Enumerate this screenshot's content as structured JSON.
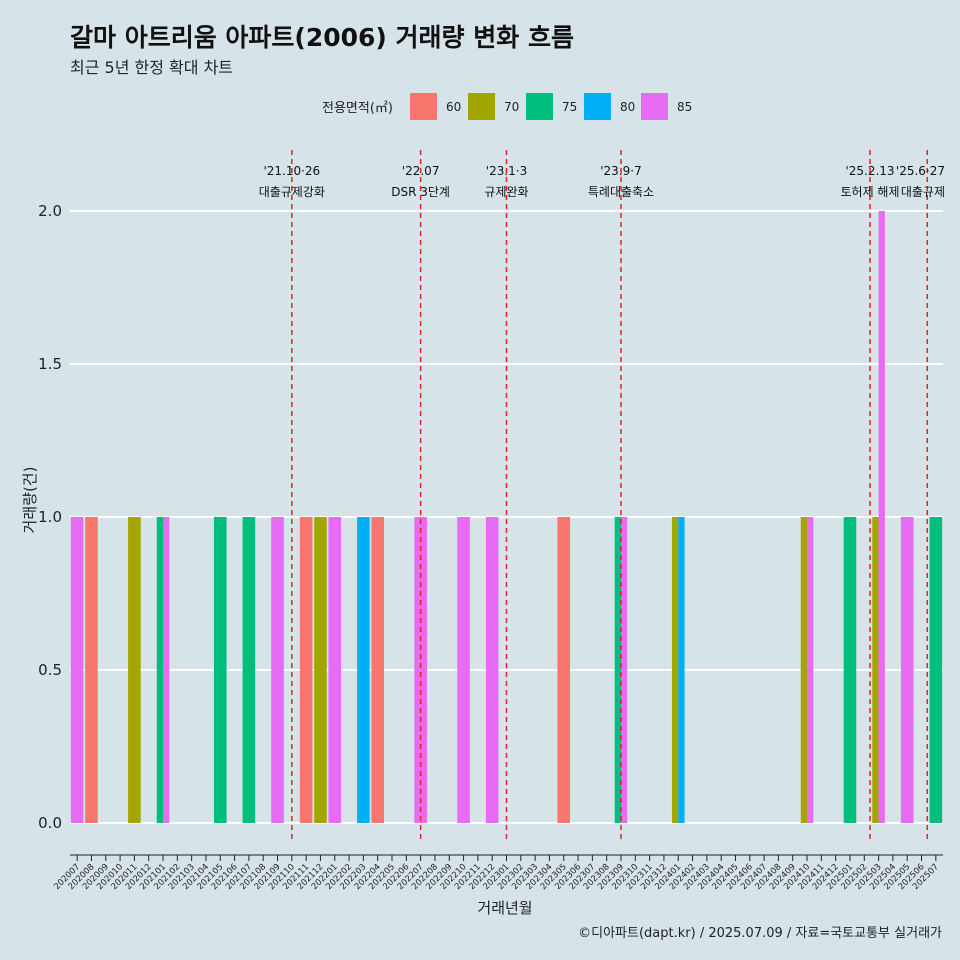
{
  "chart_data": {
    "type": "bar",
    "title": "갈마 아트리움 아파트(2006) 거래량 변화 흐름",
    "subtitle": "최근 5년 한정 확대 차트",
    "xlabel": "거래년월",
    "ylabel": "거래량(건)",
    "caption": "©디아파트(dapt.kr) / 2025.07.09 / 자료=국토교통부 실거래가",
    "legend_title": "전용면적(㎡)",
    "legend_position": "top",
    "ylim": [
      0,
      2.15
    ],
    "yticks": [
      0.0,
      0.5,
      1.0,
      1.5,
      2.0
    ],
    "ytick_labels": [
      "0.0",
      "0.5",
      "1.0",
      "1.5",
      "2.0"
    ],
    "grid": true,
    "categories": [
      "202007",
      "202008",
      "202009",
      "202010",
      "202011",
      "202012",
      "202101",
      "202102",
      "202103",
      "202104",
      "202105",
      "202106",
      "202107",
      "202108",
      "202109",
      "202110",
      "202111",
      "202112",
      "202201",
      "202202",
      "202203",
      "202204",
      "202205",
      "202206",
      "202207",
      "202208",
      "202209",
      "202210",
      "202211",
      "202212",
      "202301",
      "202302",
      "202303",
      "202304",
      "202305",
      "202306",
      "202307",
      "202308",
      "202309",
      "202310",
      "202311",
      "202312",
      "202401",
      "202402",
      "202403",
      "202404",
      "202405",
      "202406",
      "202407",
      "202408",
      "202409",
      "202410",
      "202411",
      "202412",
      "202501",
      "202502",
      "202503",
      "202504",
      "202505",
      "202506",
      "202507"
    ],
    "series": [
      {
        "name": "60",
        "color": "#f8766d",
        "values": [
          0,
          1,
          0,
          0,
          0,
          0,
          0,
          0,
          0,
          0,
          0,
          0,
          0,
          0,
          0,
          0,
          1,
          0,
          0,
          0,
          0,
          1,
          0,
          0,
          0,
          0,
          0,
          0,
          0,
          0,
          0,
          0,
          0,
          0,
          1,
          0,
          0,
          0,
          0,
          0,
          0,
          0,
          0,
          0,
          0,
          0,
          0,
          0,
          0,
          0,
          0,
          0,
          0,
          0,
          0,
          0,
          0,
          0,
          0,
          0,
          0
        ]
      },
      {
        "name": "70",
        "color": "#a3a500",
        "values": [
          0,
          0,
          0,
          0,
          1,
          0,
          0,
          0,
          0,
          0,
          0,
          0,
          0,
          0,
          0,
          0,
          0,
          1,
          0,
          0,
          0,
          0,
          0,
          0,
          0,
          0,
          0,
          0,
          0,
          0,
          0,
          0,
          0,
          0,
          0,
          0,
          0,
          0,
          0,
          0,
          0,
          0,
          1,
          0,
          0,
          0,
          0,
          0,
          0,
          0,
          0,
          1,
          0,
          0,
          0,
          0,
          1,
          0,
          0,
          0,
          0
        ]
      },
      {
        "name": "75",
        "color": "#00bf7d",
        "values": [
          0,
          0,
          0,
          0,
          0,
          0,
          1,
          0,
          0,
          0,
          1,
          0,
          1,
          0,
          0,
          0,
          0,
          0,
          0,
          0,
          0,
          0,
          0,
          0,
          0,
          0,
          0,
          0,
          0,
          0,
          0,
          0,
          0,
          0,
          0,
          0,
          0,
          0,
          1,
          0,
          0,
          0,
          0,
          0,
          0,
          0,
          0,
          0,
          0,
          0,
          0,
          0,
          0,
          0,
          1,
          0,
          0,
          0,
          0,
          0,
          1
        ]
      },
      {
        "name": "80",
        "color": "#00b0f6",
        "values": [
          0,
          0,
          0,
          0,
          0,
          0,
          0,
          0,
          0,
          0,
          0,
          0,
          0,
          0,
          0,
          0,
          0,
          0,
          0,
          0,
          1,
          0,
          0,
          0,
          0,
          0,
          0,
          0,
          0,
          0,
          0,
          0,
          0,
          0,
          0,
          0,
          0,
          0,
          0,
          0,
          0,
          0,
          1,
          0,
          0,
          0,
          0,
          0,
          0,
          0,
          0,
          0,
          0,
          0,
          0,
          0,
          0,
          0,
          0,
          0,
          0
        ]
      },
      {
        "name": "85",
        "color": "#e76bf3",
        "values": [
          1,
          0,
          0,
          0,
          0,
          0,
          1,
          0,
          0,
          0,
          0,
          0,
          0,
          0,
          1,
          0,
          0,
          0,
          1,
          0,
          0,
          0,
          0,
          0,
          1,
          0,
          0,
          1,
          0,
          1,
          0,
          0,
          0,
          0,
          0,
          0,
          0,
          0,
          1,
          0,
          0,
          0,
          0,
          0,
          0,
          0,
          0,
          0,
          0,
          0,
          0,
          1,
          0,
          0,
          0,
          0,
          2,
          0,
          1,
          0,
          0
        ]
      }
    ],
    "annotations": [
      {
        "x_index": 15.0,
        "date": "'21.10·26",
        "label": "대출규제강화"
      },
      {
        "x_index": 24.0,
        "date": "'22.07",
        "label": "DSR 3단계"
      },
      {
        "x_index": 30.0,
        "date": "'23.1·3",
        "label": "규제완화"
      },
      {
        "x_index": 38.0,
        "date": "'23.9·7",
        "label": "특례대출축소"
      },
      {
        "x_index": 55.4,
        "date": "'25.2.13",
        "label": "토허제 해제"
      },
      {
        "x_index": 59.4,
        "date": "'25.6·27",
        "label": "대출규제"
      }
    ]
  }
}
